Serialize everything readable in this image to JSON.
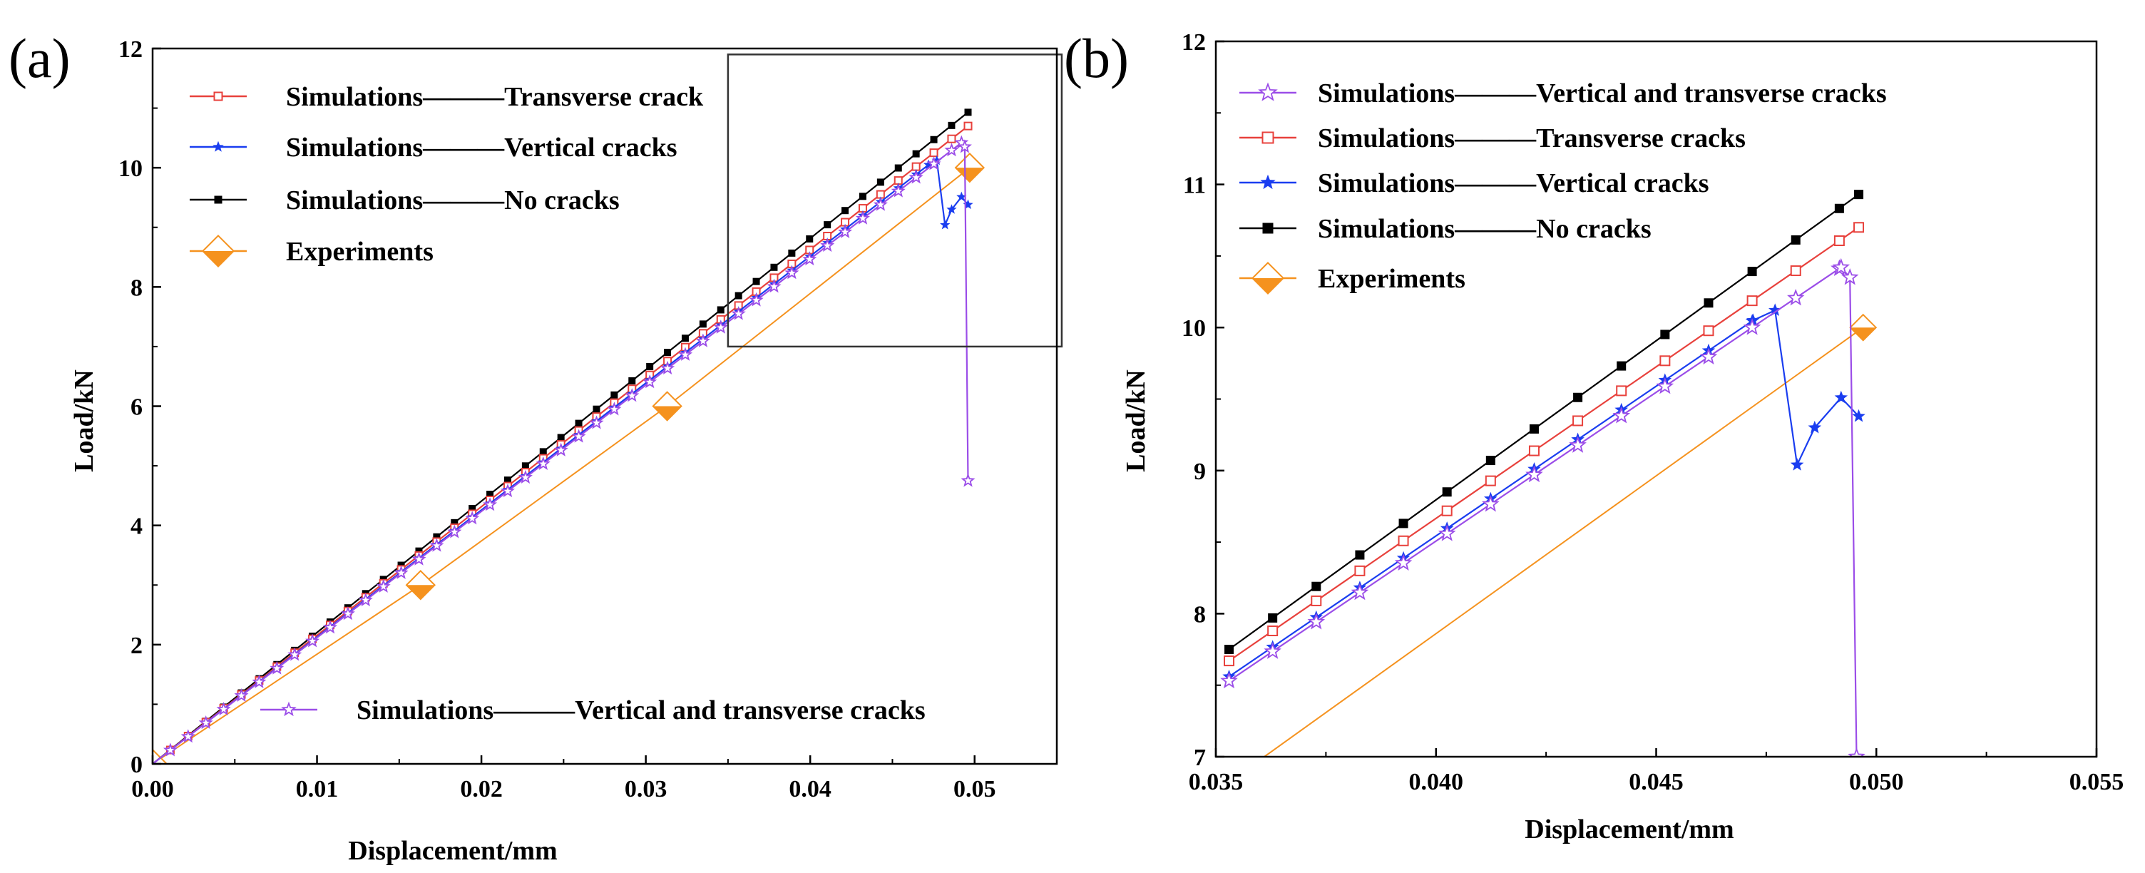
{
  "panels": [
    {
      "id": "a",
      "label": "(a)",
      "xlabel": "Displacement/mm",
      "ylabel": "Load/kN",
      "xlim": [
        0,
        0.055
      ],
      "ylim": [
        0,
        12
      ],
      "xticks": [
        0,
        0.01,
        0.02,
        0.03,
        0.04,
        0.05
      ],
      "xtick_labels": [
        "0.00",
        "0.01",
        "0.02",
        "0.03",
        "0.04",
        "0.05"
      ],
      "yticks": [
        0,
        2,
        4,
        6,
        8,
        10,
        12
      ],
      "ytick_labels": [
        "0",
        "2",
        "4",
        "6",
        "8",
        "10",
        "12"
      ],
      "zoom_box": {
        "x": [
          0.035,
          0.0553
        ],
        "y": [
          7.0,
          11.9
        ]
      },
      "legend": [
        {
          "series": "transverse",
          "text": "Simulations———Transverse crack"
        },
        {
          "series": "vertical",
          "text": "Simulations———Vertical cracks"
        },
        {
          "series": "nocracks",
          "text": "Simulations———No cracks"
        },
        {
          "series": "experiments",
          "text": "Experiments"
        },
        {
          "series": "both",
          "text": "Simulations———Vertical and transverse cracks"
        }
      ]
    },
    {
      "id": "b",
      "label": "(b)",
      "xlabel": "Displacement/mm",
      "ylabel": "Load/kN",
      "xlim": [
        0.035,
        0.055
      ],
      "ylim": [
        7,
        12
      ],
      "xticks": [
        0.035,
        0.04,
        0.045,
        0.05,
        0.055
      ],
      "xtick_labels": [
        "0.035",
        "0.040",
        "0.045",
        "0.050",
        "0.055"
      ],
      "yticks": [
        7,
        8,
        9,
        10,
        11,
        12
      ],
      "ytick_labels": [
        "7",
        "8",
        "9",
        "10",
        "11",
        "12"
      ],
      "legend": [
        {
          "series": "both",
          "text": "Simulations———Vertical and transverse cracks"
        },
        {
          "series": "transverse",
          "text": "Simulations———Transverse cracks"
        },
        {
          "series": "vertical",
          "text": "Simulations———Vertical cracks"
        },
        {
          "series": "nocracks",
          "text": "Simulations———No cracks"
        },
        {
          "series": "experiments",
          "text": "Experiments"
        }
      ]
    }
  ],
  "chart_data": [
    {
      "type": "line",
      "panel": "a",
      "xlabel": "Displacement/mm",
      "ylabel": "Load/kN",
      "xlim": [
        0,
        0.055
      ],
      "ylim": [
        0,
        12
      ],
      "series": [
        {
          "name": "Simulations - No cracks",
          "key": "nocracks",
          "color": "#000000",
          "marker": "square",
          "points": [
            [
              0,
              0
            ],
            [
              0.0496,
              10.93
            ]
          ]
        },
        {
          "name": "Simulations - Transverse crack",
          "key": "transverse",
          "color": "#e8413c",
          "marker": "open-square",
          "points": [
            [
              0,
              0
            ],
            [
              0.0496,
              10.7
            ]
          ]
        },
        {
          "name": "Simulations - Vertical cracks",
          "key": "vertical",
          "color": "#1a3df0",
          "marker": "star",
          "points": [
            [
              0,
              0
            ],
            [
              0.0472,
              10.05
            ],
            [
              0.0477,
              10.12
            ],
            [
              0.0482,
              9.04
            ],
            [
              0.0486,
              9.3
            ],
            [
              0.0492,
              9.51
            ],
            [
              0.0496,
              9.38
            ]
          ]
        },
        {
          "name": "Simulations - Vertical and transverse cracks",
          "key": "both",
          "color": "#9b4de8",
          "marker": "open-star",
          "points": [
            [
              0,
              0
            ],
            [
              0.0492,
              10.42
            ],
            [
              0.0494,
              10.35
            ],
            [
              0.0496,
              4.75
            ]
          ]
        },
        {
          "name": "Experiments",
          "key": "experiments",
          "color": "#f5921e",
          "marker": "diamond",
          "points": [
            [
              0,
              0
            ],
            [
              0.0163,
              3.0
            ],
            [
              0.0313,
              6.0
            ],
            [
              0.0497,
              10.0
            ]
          ]
        }
      ]
    },
    {
      "type": "line",
      "panel": "b",
      "xlabel": "Displacement/mm",
      "ylabel": "Load/kN",
      "xlim": [
        0.035,
        0.055
      ],
      "ylim": [
        7,
        12
      ],
      "series": [
        {
          "name": "Simulations - No cracks",
          "key": "nocracks",
          "color": "#000000",
          "marker": "square",
          "points": [
            [
              0.0353,
              7.75
            ],
            [
              0.0496,
              10.93
            ]
          ]
        },
        {
          "name": "Simulations - Transverse cracks",
          "key": "transverse",
          "color": "#e8413c",
          "marker": "open-square",
          "points": [
            [
              0.0353,
              7.67
            ],
            [
              0.0496,
              10.7
            ]
          ]
        },
        {
          "name": "Simulations - Vertical cracks",
          "key": "vertical",
          "color": "#1a3df0",
          "marker": "star",
          "points": [
            [
              0.0353,
              7.56
            ],
            [
              0.0472,
              10.05
            ],
            [
              0.0477,
              10.12
            ],
            [
              0.0482,
              9.04
            ],
            [
              0.0486,
              9.3
            ],
            [
              0.0492,
              9.51
            ],
            [
              0.0496,
              9.38
            ]
          ]
        },
        {
          "name": "Simulations - Vertical and transverse cracks",
          "key": "both",
          "color": "#9b4de8",
          "marker": "open-star",
          "points": [
            [
              0.0353,
              7.53
            ],
            [
              0.0492,
              10.42
            ],
            [
              0.0494,
              10.35
            ],
            [
              0.04955,
              7.0
            ]
          ]
        },
        {
          "name": "Experiments",
          "key": "experiments",
          "color": "#f5921e",
          "marker": "diamond",
          "points": [
            [
              0.0361,
              7.0
            ],
            [
              0.0497,
              10.0
            ]
          ]
        }
      ]
    }
  ]
}
